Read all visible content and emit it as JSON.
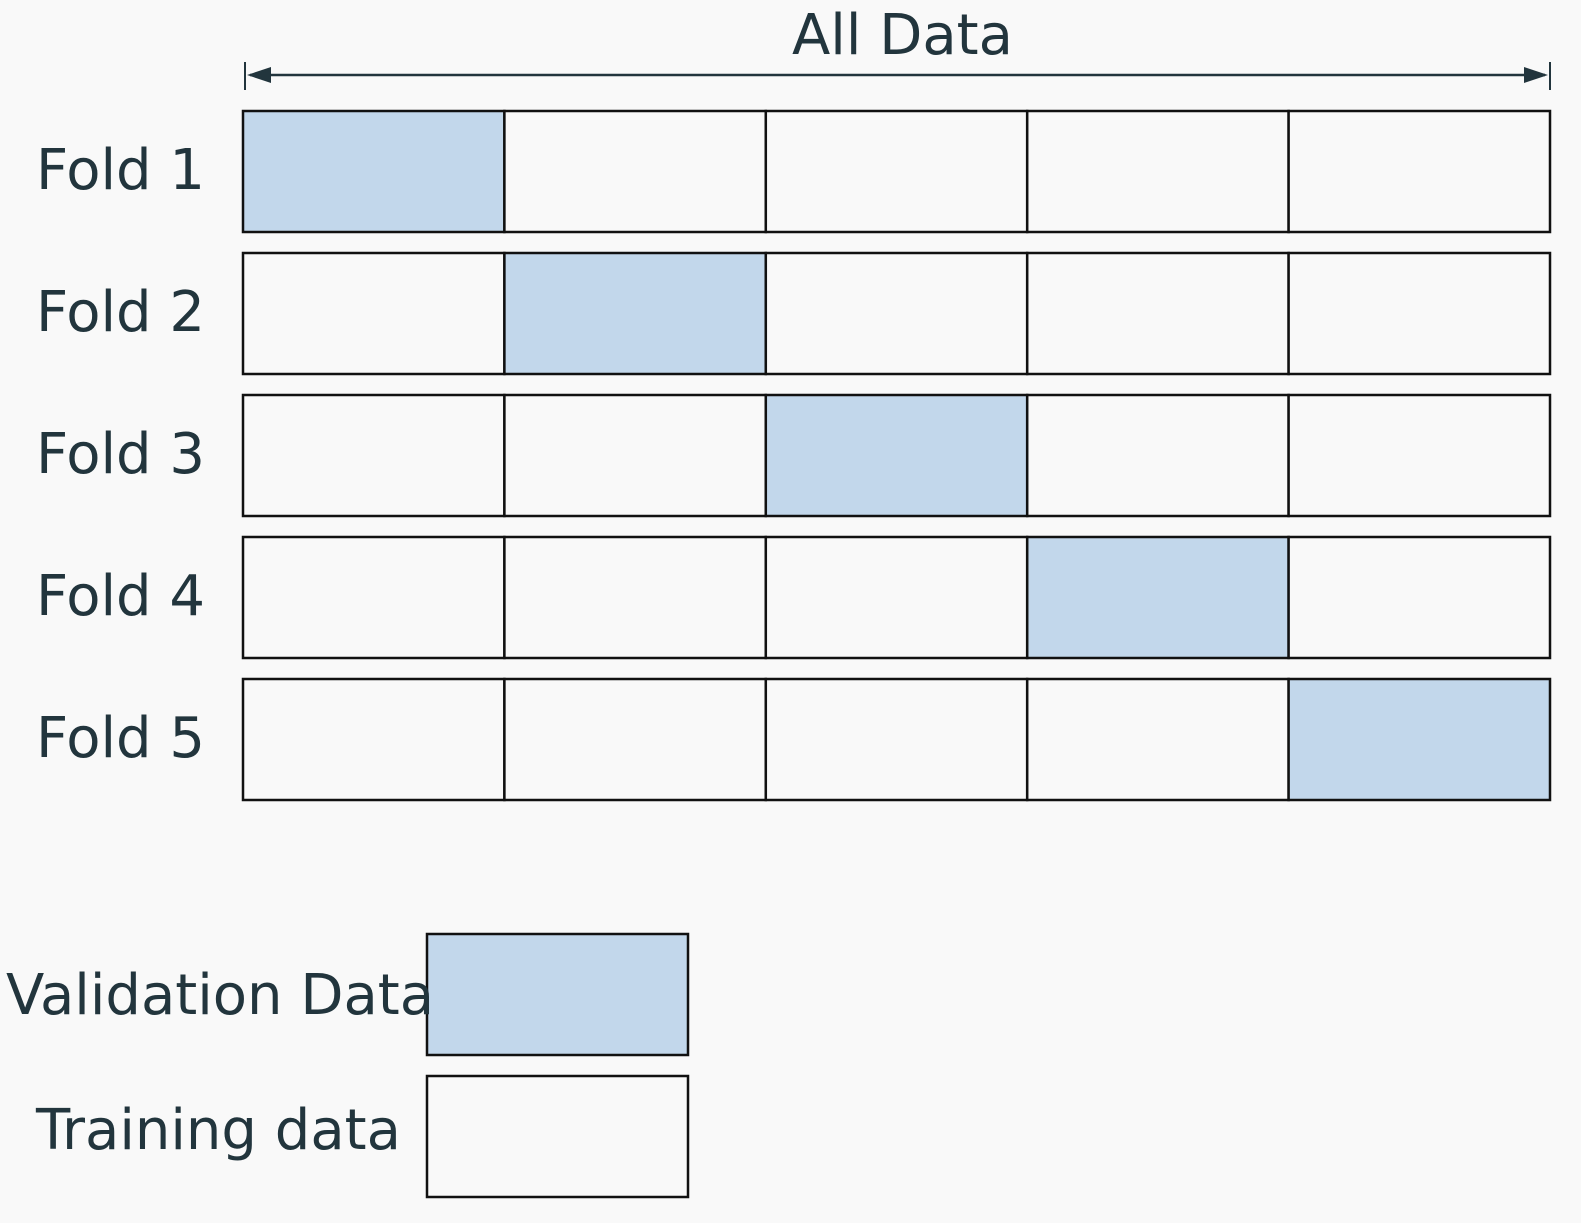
{
  "title": "All Data",
  "folds": [
    {
      "label": "Fold 1",
      "validation_index": 0
    },
    {
      "label": "Fold 2",
      "validation_index": 1
    },
    {
      "label": "Fold 3",
      "validation_index": 2
    },
    {
      "label": "Fold 4",
      "validation_index": 3
    },
    {
      "label": "Fold 5",
      "validation_index": 4
    }
  ],
  "segments_per_fold": 5,
  "legend": {
    "validation": {
      "label": "Validation Data",
      "color": "#c2d7eb"
    },
    "training": {
      "label": "Training data",
      "color": "#f9f9f9"
    }
  },
  "colors": {
    "border": "#111111",
    "text": "#22353d",
    "background": "#f9f9f9"
  }
}
